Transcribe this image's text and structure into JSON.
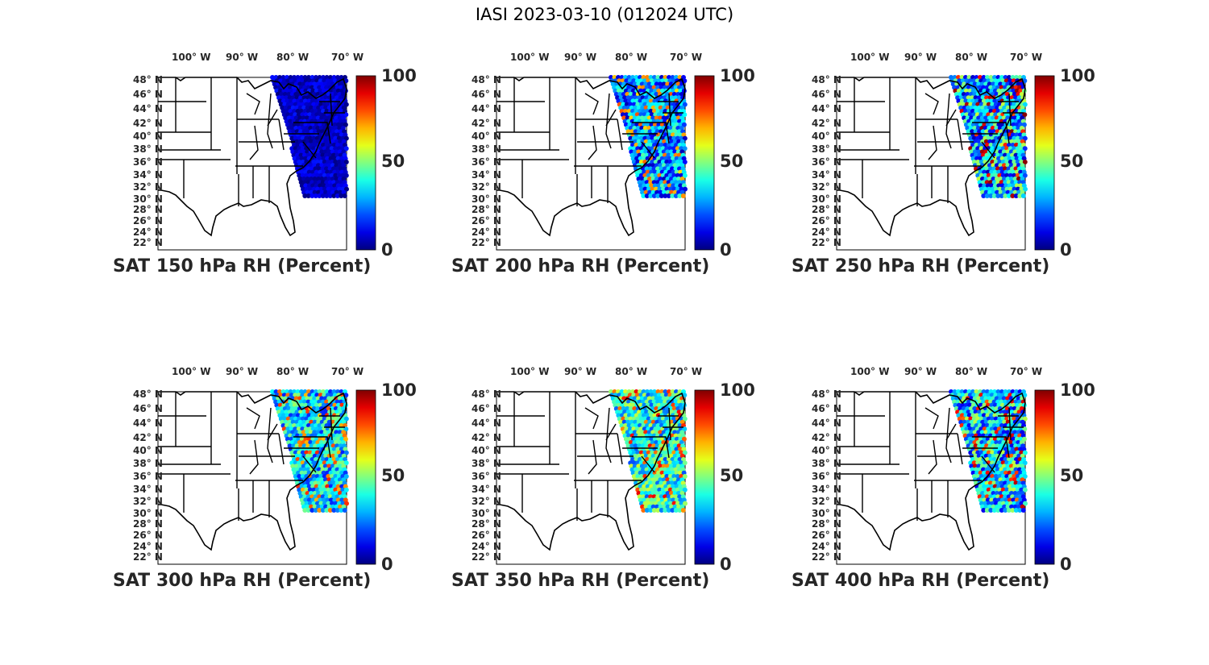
{
  "figure_title": "IASI 2023-03-10 (012024 UTC)",
  "colormap": "jet",
  "colors": {
    "cb_low": "#00008f",
    "cb_mid": "#7fff7f",
    "cb_high": "#800000",
    "state_lines": "#000000"
  },
  "lon_ticks": [
    "100° W",
    "90° W",
    "80° W",
    "70° W"
  ],
  "lat_ticks": [
    "48° N",
    "46° N",
    "44° N",
    "42° N",
    "40° N",
    "38° N",
    "36° N",
    "34° N",
    "32° N",
    "30° N",
    "28° N",
    "26° N",
    "24° N",
    "22° N"
  ],
  "colorbar_ticks": [
    "0",
    "50",
    "100"
  ],
  "panels": [
    {
      "title": "SAT 150 hPa RH (Percent)",
      "level": 150,
      "field_range_pct": [
        0,
        15
      ]
    },
    {
      "title": "SAT 200 hPa RH (Percent)",
      "level": 200,
      "field_range_pct": [
        5,
        80
      ]
    },
    {
      "title": "SAT 250 hPa RH (Percent)",
      "level": 250,
      "field_range_pct": [
        5,
        100
      ]
    },
    {
      "title": "SAT 300 hPa RH (Percent)",
      "level": 300,
      "field_range_pct": [
        15,
        85
      ]
    },
    {
      "title": "SAT 350 hPa RH (Percent)",
      "level": 350,
      "field_range_pct": [
        20,
        90
      ]
    },
    {
      "title": "SAT 400 hPa RH (Percent)",
      "level": 400,
      "field_range_pct": [
        10,
        95
      ]
    }
  ]
}
